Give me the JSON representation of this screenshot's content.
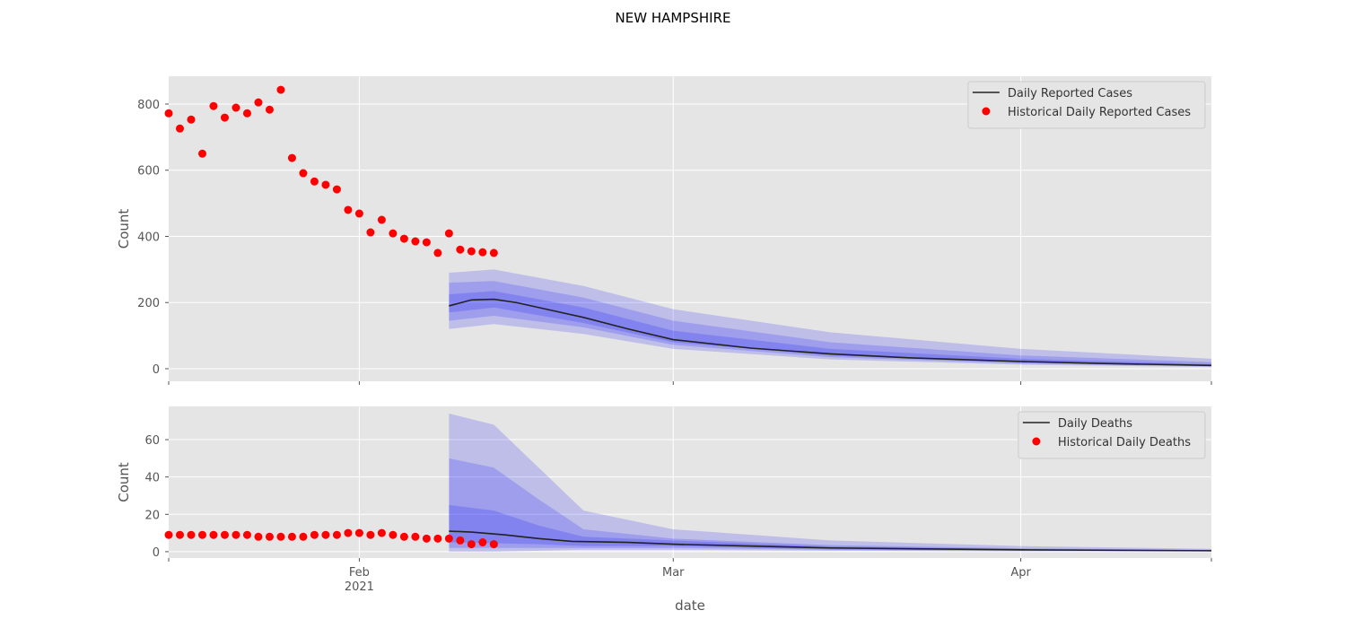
{
  "title": "NEW HAMPSHIRE",
  "chart_data": [
    {
      "type": "line",
      "ylabel": "Count",
      "xlim": [
        "2021-01-15",
        "2021-04-18"
      ],
      "ylim": [
        -38,
        884
      ],
      "yticks": [
        0,
        200,
        400,
        600,
        800
      ],
      "xticks": [
        "2021-02-01",
        "2021-03-01",
        "2021-04-01"
      ],
      "show_xticklabels": false,
      "grid": true,
      "legend": "upper right",
      "series": [
        {
          "name": "Daily Reported Cases",
          "type": "line",
          "color": "#222222",
          "x": [
            "2021-02-09",
            "2021-02-11",
            "2021-02-13",
            "2021-02-15",
            "2021-02-17",
            "2021-02-21",
            "2021-02-25",
            "2021-03-01",
            "2021-03-08",
            "2021-03-15",
            "2021-03-22",
            "2021-04-01",
            "2021-04-08",
            "2021-04-18"
          ],
          "values": [
            190,
            208,
            210,
            200,
            185,
            155,
            120,
            88,
            62,
            45,
            33,
            22,
            16,
            10
          ],
          "bands": {
            "color": "#0000ff",
            "x": [
              "2021-02-09",
              "2021-02-13",
              "2021-02-21",
              "2021-03-01",
              "2021-03-15",
              "2021-04-01",
              "2021-04-18"
            ],
            "levels": [
              {
                "lower": [
                  120,
                  135,
                  105,
                  60,
                  28,
                  12,
                  5
                ],
                "upper": [
                  290,
                  300,
                  250,
                  180,
                  110,
                  60,
                  30
                ]
              },
              {
                "lower": [
                  145,
                  160,
                  125,
                  72,
                  35,
                  16,
                  7
                ],
                "upper": [
                  260,
                  265,
                  215,
                  145,
                  80,
                  40,
                  20
                ]
              },
              {
                "lower": [
                  170,
                  185,
                  138,
                  80,
                  40,
                  18,
                  8
                ],
                "upper": [
                  225,
                  235,
                  185,
                  115,
                  60,
                  30,
                  14
                ]
              }
            ]
          }
        },
        {
          "name": "Historical Daily Reported Cases",
          "type": "scatter",
          "color": "#ff0000",
          "x": [
            "2021-01-15",
            "2021-01-16",
            "2021-01-17",
            "2021-01-18",
            "2021-01-19",
            "2021-01-20",
            "2021-01-21",
            "2021-01-22",
            "2021-01-23",
            "2021-01-24",
            "2021-01-25",
            "2021-01-26",
            "2021-01-27",
            "2021-01-28",
            "2021-01-29",
            "2021-01-30",
            "2021-01-31",
            "2021-02-01",
            "2021-02-02",
            "2021-02-03",
            "2021-02-04",
            "2021-02-05",
            "2021-02-06",
            "2021-02-07",
            "2021-02-08",
            "2021-02-09",
            "2021-02-10",
            "2021-02-11",
            "2021-02-12",
            "2021-02-13"
          ],
          "values": [
            772,
            726,
            753,
            650,
            794,
            759,
            789,
            772,
            805,
            783,
            843,
            637,
            591,
            566,
            556,
            542,
            480,
            469,
            412,
            450,
            409,
            393,
            385,
            382,
            350,
            409,
            360,
            355,
            352,
            350
          ]
        }
      ]
    },
    {
      "type": "line",
      "ylabel": "Count",
      "xlabel": "date",
      "xlim": [
        "2021-01-15",
        "2021-04-18"
      ],
      "ylim": [
        -3.4,
        77.8
      ],
      "yticks": [
        0,
        20,
        40,
        60
      ],
      "xticks": [
        {
          "value": "2021-02-01",
          "label": "Feb\n2021"
        },
        {
          "value": "2021-03-01",
          "label": "Mar"
        },
        {
          "value": "2021-04-01",
          "label": "Apr"
        }
      ],
      "show_xticklabels": true,
      "grid": true,
      "legend": "upper right",
      "series": [
        {
          "name": "Daily Deaths",
          "type": "line",
          "color": "#222222",
          "x": [
            "2021-02-09",
            "2021-02-11",
            "2021-02-14",
            "2021-02-17",
            "2021-02-20",
            "2021-02-25",
            "2021-03-01",
            "2021-03-08",
            "2021-03-15",
            "2021-04-01",
            "2021-04-18"
          ],
          "values": [
            11,
            10.5,
            9,
            7,
            5.5,
            5,
            4,
            3,
            2,
            1,
            0.5
          ],
          "bands": {
            "color": "#0000ff",
            "x": [
              "2021-02-09",
              "2021-02-13",
              "2021-02-17",
              "2021-02-21",
              "2021-03-01",
              "2021-03-15",
              "2021-04-01",
              "2021-04-18"
            ],
            "levels": [
              {
                "lower": [
                  0,
                  0,
                  0.5,
                  1,
                  1,
                  0.5,
                  0.2,
                  0.1
                ],
                "upper": [
                  74,
                  68,
                  45,
                  22,
                  12,
                  6,
                  3,
                  1.5
                ]
              },
              {
                "lower": [
                  2,
                  2,
                  2,
                  2,
                  2,
                  1,
                  0.5,
                  0.2
                ],
                "upper": [
                  50,
                  45,
                  28,
                  12,
                  7,
                  3.5,
                  1.8,
                  1
                ]
              },
              {
                "lower": [
                  5,
                  4.5,
                  4,
                  3,
                  3,
                  1.3,
                  0.6,
                  0.3
                ],
                "upper": [
                  25,
                  22,
                  14,
                  8,
                  6,
                  2.8,
                  1.4,
                  0.8
                ]
              }
            ]
          }
        },
        {
          "name": "Historical Daily Deaths",
          "type": "scatter",
          "color": "#ff0000",
          "x": [
            "2021-01-15",
            "2021-01-16",
            "2021-01-17",
            "2021-01-18",
            "2021-01-19",
            "2021-01-20",
            "2021-01-21",
            "2021-01-22",
            "2021-01-23",
            "2021-01-24",
            "2021-01-25",
            "2021-01-26",
            "2021-01-27",
            "2021-01-28",
            "2021-01-29",
            "2021-01-30",
            "2021-01-31",
            "2021-02-01",
            "2021-02-02",
            "2021-02-03",
            "2021-02-04",
            "2021-02-05",
            "2021-02-06",
            "2021-02-07",
            "2021-02-08",
            "2021-02-09",
            "2021-02-10",
            "2021-02-11",
            "2021-02-12",
            "2021-02-13"
          ],
          "values": [
            9,
            9,
            9,
            9,
            9,
            9,
            9,
            9,
            8,
            8,
            8,
            8,
            8,
            9,
            9,
            9,
            10,
            10,
            9,
            10,
            9,
            8,
            8,
            7,
            7,
            7,
            6,
            4,
            5,
            4
          ]
        }
      ]
    }
  ]
}
